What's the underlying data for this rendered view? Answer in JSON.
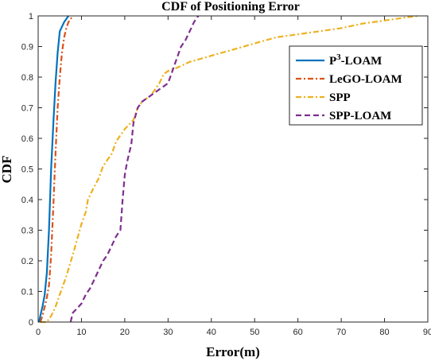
{
  "chart_data": {
    "type": "line",
    "title": "CDF of Positioning Error",
    "xlabel": "Error(m)",
    "ylabel": "CDF",
    "xlim": [
      0,
      90
    ],
    "ylim": [
      0,
      1
    ],
    "xticks": [
      0,
      10,
      20,
      30,
      40,
      50,
      60,
      70,
      80,
      90
    ],
    "yticks": [
      0,
      0.1,
      0.2,
      0.3,
      0.4,
      0.5,
      0.6,
      0.7,
      0.8,
      0.9,
      1
    ],
    "grid": false,
    "legend_position": "top-right",
    "series": [
      {
        "name": "P3-LOAM",
        "legend_label": {
          "base": "P",
          "sup": "3",
          "rest": "-LOAM"
        },
        "color": "#0072BD",
        "dash": "solid",
        "x": [
          0.2,
          0.5,
          1.0,
          1.5,
          2.0,
          2.5,
          3.0,
          3.5,
          4.0,
          4.5,
          5.0,
          6.0,
          7.0
        ],
        "y": [
          0,
          0.02,
          0.05,
          0.09,
          0.16,
          0.3,
          0.5,
          0.65,
          0.78,
          0.88,
          0.95,
          0.98,
          1.0
        ]
      },
      {
        "name": "LeGO-LOAM",
        "color": "#D95319",
        "dash": "dashdot",
        "x": [
          0.5,
          1.0,
          1.5,
          2.0,
          2.5,
          3.0,
          3.5,
          4.0,
          4.5,
          5.0,
          5.5,
          6.0,
          6.5,
          7.0,
          7.5,
          8.0
        ],
        "y": [
          0,
          0.02,
          0.05,
          0.08,
          0.12,
          0.22,
          0.38,
          0.55,
          0.7,
          0.8,
          0.88,
          0.93,
          0.96,
          0.98,
          0.99,
          1.0
        ]
      },
      {
        "name": "SPP",
        "color": "#EDB120",
        "dash": "dashdot",
        "x": [
          0.5,
          2.0,
          3.0,
          4.0,
          5.0,
          6.5,
          8.0,
          9.0,
          10.0,
          11.0,
          11.5,
          12.5,
          14.0,
          15.0,
          17.0,
          18.0,
          20.0,
          22.0,
          23.0,
          24.0,
          26.0,
          27.0,
          28.0,
          29.0,
          30.0,
          32.0,
          35.0,
          40.0,
          45.0,
          50.0,
          55.0,
          60.0,
          65.0,
          70.0,
          75.0,
          80.0,
          85.0,
          88.0
        ],
        "y": [
          0,
          0,
          0.02,
          0.05,
          0.09,
          0.15,
          0.22,
          0.27,
          0.32,
          0.36,
          0.4,
          0.43,
          0.47,
          0.51,
          0.55,
          0.59,
          0.63,
          0.66,
          0.7,
          0.72,
          0.74,
          0.76,
          0.78,
          0.81,
          0.82,
          0.83,
          0.85,
          0.87,
          0.89,
          0.91,
          0.93,
          0.94,
          0.95,
          0.96,
          0.975,
          0.985,
          0.995,
          1.0
        ]
      },
      {
        "name": "SPP-LOAM",
        "color": "#7E2F8E",
        "dash": "dashed",
        "x": [
          7.5,
          8.0,
          10.0,
          11.0,
          12.0,
          13.0,
          14.0,
          15.0,
          16.0,
          17.0,
          18.0,
          19.0,
          19.5,
          20.0,
          20.5,
          21.0,
          21.5,
          22.0,
          23.0,
          24.0,
          26.0,
          28.0,
          30.0,
          31.0,
          32.0,
          33.0,
          34.0,
          35.0,
          36.0,
          37.0
        ],
        "y": [
          0,
          0.03,
          0.06,
          0.09,
          0.11,
          0.14,
          0.17,
          0.2,
          0.22,
          0.25,
          0.28,
          0.3,
          0.4,
          0.48,
          0.52,
          0.55,
          0.58,
          0.65,
          0.7,
          0.72,
          0.74,
          0.76,
          0.78,
          0.82,
          0.86,
          0.9,
          0.92,
          0.95,
          0.98,
          1.0
        ]
      }
    ]
  }
}
